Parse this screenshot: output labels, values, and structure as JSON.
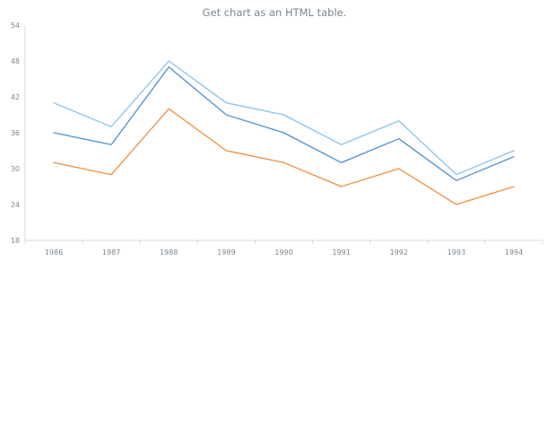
{
  "chart_data": {
    "type": "line",
    "title": "Get chart as an HTML table.",
    "xlabel": "",
    "ylabel": "",
    "categories": [
      "1986",
      "1987",
      "1988",
      "1989",
      "1990",
      "1991",
      "1992",
      "1993",
      "1994"
    ],
    "ylim": [
      18,
      54
    ],
    "yticks": [
      18,
      24,
      30,
      36,
      42,
      48,
      54
    ],
    "grid": false,
    "legend": "none",
    "series": [
      {
        "color": "#86c3ee",
        "values": [
          41,
          37,
          48,
          41,
          39,
          34,
          38,
          29,
          33
        ]
      },
      {
        "color": "#4d8fcf",
        "values": [
          36,
          34,
          47,
          39,
          36,
          31,
          35,
          28,
          32
        ]
      },
      {
        "color": "#ef8e3c",
        "values": [
          31,
          29,
          40,
          33,
          31,
          27,
          30,
          24,
          27
        ]
      }
    ]
  }
}
